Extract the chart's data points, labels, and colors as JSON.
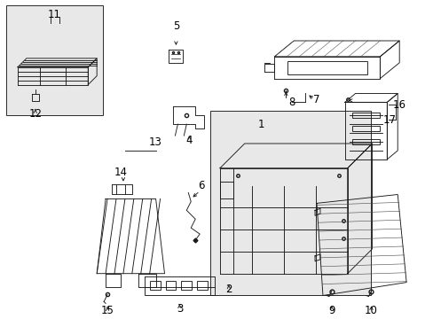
{
  "bg_color": "#ffffff",
  "line_color": "#1a1a1a",
  "label_color": "#000000",
  "fig_width": 4.89,
  "fig_height": 3.6,
  "dpi": 100,
  "label_fontsize": 8.5,
  "lw": 0.65
}
